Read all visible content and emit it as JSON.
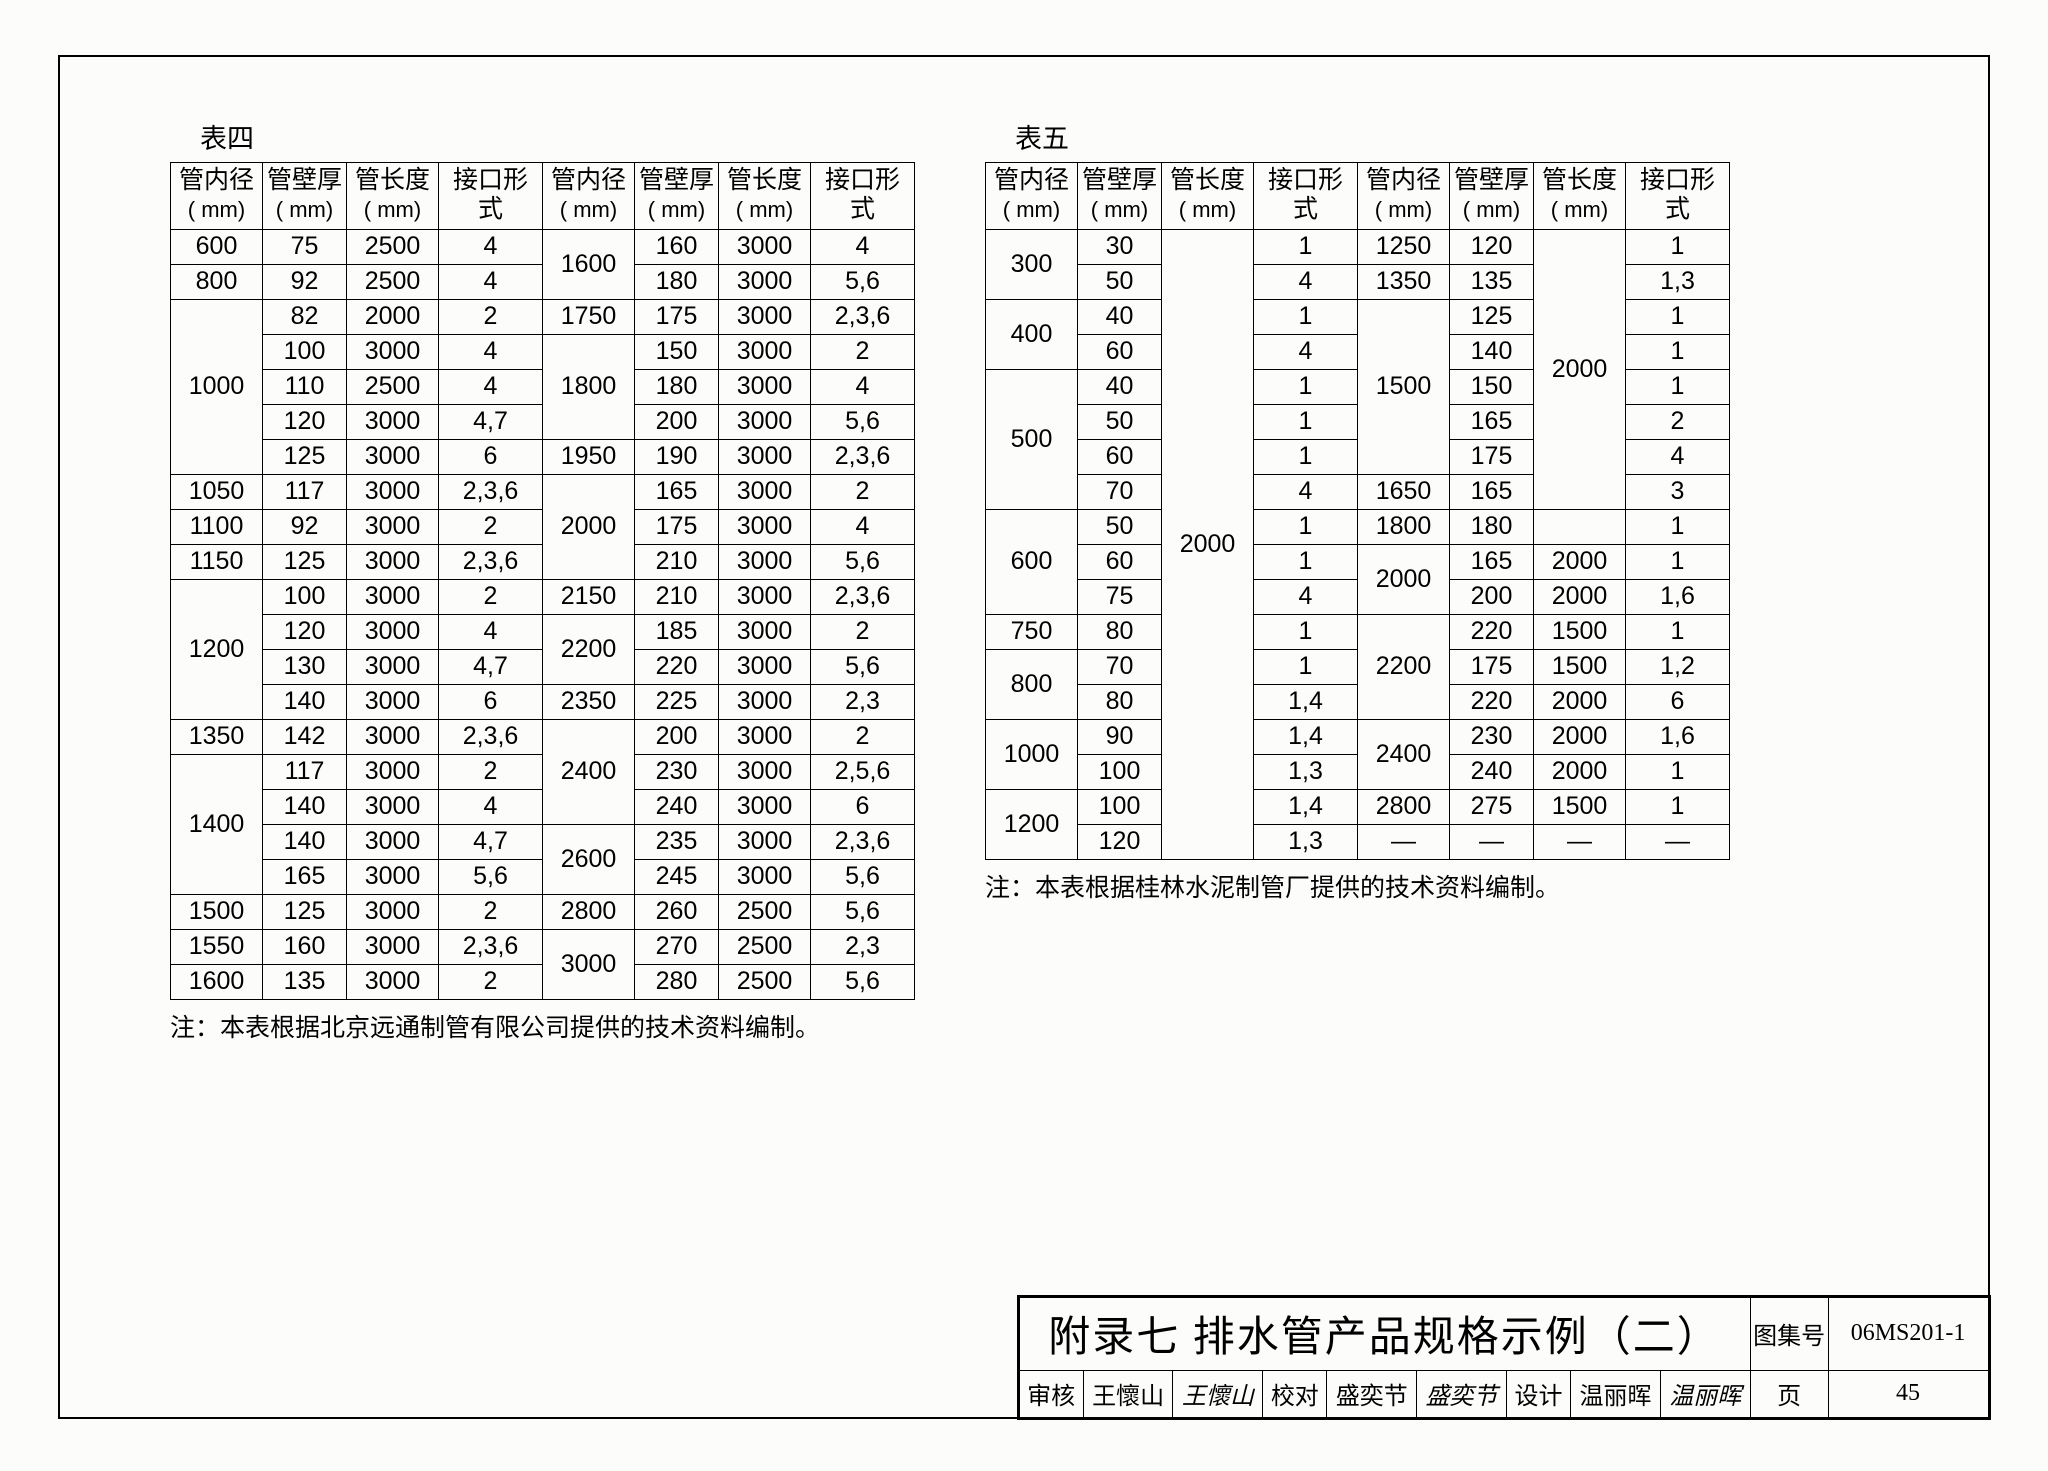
{
  "global": {
    "border_color": "#000000",
    "background_color": "#fcfcfb",
    "text_color": "#000000"
  },
  "table4": {
    "caption": "表四",
    "headers": [
      {
        "l1": "管内径",
        "l2": "( mm)"
      },
      {
        "l1": "管壁厚",
        "l2": "( mm)"
      },
      {
        "l1": "管长度",
        "l2": "( mm)"
      },
      {
        "l1": "接口形式",
        "l2": ""
      },
      {
        "l1": "管内径",
        "l2": "( mm)"
      },
      {
        "l1": "管壁厚",
        "l2": "( mm)"
      },
      {
        "l1": "管长度",
        "l2": "( mm)"
      },
      {
        "l1": "接口形式",
        "l2": ""
      }
    ],
    "body": [
      [
        {
          "t": "600"
        },
        {
          "t": "75"
        },
        {
          "t": "2500"
        },
        {
          "t": "4"
        },
        {
          "t": "1600",
          "rs": 2
        },
        {
          "t": "160"
        },
        {
          "t": "3000"
        },
        {
          "t": "4"
        }
      ],
      [
        {
          "t": "800"
        },
        {
          "t": "92"
        },
        {
          "t": "2500"
        },
        {
          "t": "4"
        },
        {
          "t": "180"
        },
        {
          "t": "3000"
        },
        {
          "t": "5,6"
        }
      ],
      [
        {
          "t": "1000",
          "rs": 5
        },
        {
          "t": "82"
        },
        {
          "t": "2000"
        },
        {
          "t": "2"
        },
        {
          "t": "1750"
        },
        {
          "t": "175"
        },
        {
          "t": "3000"
        },
        {
          "t": "2,3,6"
        }
      ],
      [
        {
          "t": "100"
        },
        {
          "t": "3000"
        },
        {
          "t": "4"
        },
        {
          "t": "1800",
          "rs": 3
        },
        {
          "t": "150"
        },
        {
          "t": "3000"
        },
        {
          "t": "2"
        }
      ],
      [
        {
          "t": "110"
        },
        {
          "t": "2500"
        },
        {
          "t": "4"
        },
        {
          "t": "180"
        },
        {
          "t": "3000"
        },
        {
          "t": "4"
        }
      ],
      [
        {
          "t": "120"
        },
        {
          "t": "3000"
        },
        {
          "t": "4,7"
        },
        {
          "t": "200"
        },
        {
          "t": "3000"
        },
        {
          "t": "5,6"
        }
      ],
      [
        {
          "t": "125"
        },
        {
          "t": "3000"
        },
        {
          "t": "6"
        },
        {
          "t": "1950"
        },
        {
          "t": "190"
        },
        {
          "t": "3000"
        },
        {
          "t": "2,3,6"
        }
      ],
      [
        {
          "t": "1050"
        },
        {
          "t": "117"
        },
        {
          "t": "3000"
        },
        {
          "t": "2,3,6"
        },
        {
          "t": "2000",
          "rs": 3
        },
        {
          "t": "165"
        },
        {
          "t": "3000"
        },
        {
          "t": "2"
        }
      ],
      [
        {
          "t": "1100"
        },
        {
          "t": "92"
        },
        {
          "t": "3000"
        },
        {
          "t": "2"
        },
        {
          "t": "175"
        },
        {
          "t": "3000"
        },
        {
          "t": "4"
        }
      ],
      [
        {
          "t": "1150"
        },
        {
          "t": "125"
        },
        {
          "t": "3000"
        },
        {
          "t": "2,3,6"
        },
        {
          "t": "210"
        },
        {
          "t": "3000"
        },
        {
          "t": "5,6"
        }
      ],
      [
        {
          "t": "1200",
          "rs": 4
        },
        {
          "t": "100"
        },
        {
          "t": "3000"
        },
        {
          "t": "2"
        },
        {
          "t": "2150"
        },
        {
          "t": "210"
        },
        {
          "t": "3000"
        },
        {
          "t": "2,3,6"
        }
      ],
      [
        {
          "t": "120"
        },
        {
          "t": "3000"
        },
        {
          "t": "4"
        },
        {
          "t": "2200",
          "rs": 2
        },
        {
          "t": "185"
        },
        {
          "t": "3000"
        },
        {
          "t": "2"
        }
      ],
      [
        {
          "t": "130"
        },
        {
          "t": "3000"
        },
        {
          "t": "4,7"
        },
        {
          "t": "220"
        },
        {
          "t": "3000"
        },
        {
          "t": "5,6"
        }
      ],
      [
        {
          "t": "140"
        },
        {
          "t": "3000"
        },
        {
          "t": "6"
        },
        {
          "t": "2350"
        },
        {
          "t": "225"
        },
        {
          "t": "3000"
        },
        {
          "t": "2,3"
        }
      ],
      [
        {
          "t": "1350"
        },
        {
          "t": "142"
        },
        {
          "t": "3000"
        },
        {
          "t": "2,3,6"
        },
        {
          "t": "2400",
          "rs": 3
        },
        {
          "t": "200"
        },
        {
          "t": "3000"
        },
        {
          "t": "2"
        }
      ],
      [
        {
          "t": "1400",
          "rs": 4
        },
        {
          "t": "117"
        },
        {
          "t": "3000"
        },
        {
          "t": "2"
        },
        {
          "t": "230"
        },
        {
          "t": "3000"
        },
        {
          "t": "2,5,6"
        }
      ],
      [
        {
          "t": "140"
        },
        {
          "t": "3000"
        },
        {
          "t": "4"
        },
        {
          "t": "240"
        },
        {
          "t": "3000"
        },
        {
          "t": "6"
        }
      ],
      [
        {
          "t": "140"
        },
        {
          "t": "3000"
        },
        {
          "t": "4,7"
        },
        {
          "t": "2600",
          "rs": 2
        },
        {
          "t": "235"
        },
        {
          "t": "3000"
        },
        {
          "t": "2,3,6"
        }
      ],
      [
        {
          "t": "165"
        },
        {
          "t": "3000"
        },
        {
          "t": "5,6"
        },
        {
          "t": "245"
        },
        {
          "t": "3000"
        },
        {
          "t": "5,6"
        }
      ],
      [
        {
          "t": "1500"
        },
        {
          "t": "125"
        },
        {
          "t": "3000"
        },
        {
          "t": "2"
        },
        {
          "t": "2800"
        },
        {
          "t": "260"
        },
        {
          "t": "2500"
        },
        {
          "t": "5,6"
        }
      ],
      [
        {
          "t": "1550"
        },
        {
          "t": "160"
        },
        {
          "t": "3000"
        },
        {
          "t": "2,3,6"
        },
        {
          "t": "3000",
          "rs": 2
        },
        {
          "t": "270"
        },
        {
          "t": "2500"
        },
        {
          "t": "2,3"
        }
      ],
      [
        {
          "t": "1600"
        },
        {
          "t": "135"
        },
        {
          "t": "3000"
        },
        {
          "t": "2"
        },
        {
          "t": "280"
        },
        {
          "t": "2500"
        },
        {
          "t": "5,6"
        }
      ]
    ],
    "note": "注：本表根据北京远通制管有限公司提供的技术资料编制。"
  },
  "table5": {
    "caption": "表五",
    "headers": [
      {
        "l1": "管内径",
        "l2": "( mm)"
      },
      {
        "l1": "管壁厚",
        "l2": "( mm)"
      },
      {
        "l1": "管长度",
        "l2": "( mm)"
      },
      {
        "l1": "接口形式",
        "l2": ""
      },
      {
        "l1": "管内径",
        "l2": "( mm)"
      },
      {
        "l1": "管壁厚",
        "l2": "( mm)"
      },
      {
        "l1": "管长度",
        "l2": "( mm)"
      },
      {
        "l1": "接口形式",
        "l2": ""
      }
    ],
    "body": [
      [
        {
          "t": "300",
          "rs": 2
        },
        {
          "t": "30"
        },
        {
          "t": "2000",
          "rs": 19
        },
        {
          "t": "1"
        },
        {
          "t": "1250"
        },
        {
          "t": "120"
        },
        {
          "t": "2000",
          "rs": 8
        },
        {
          "t": "1"
        }
      ],
      [
        {
          "t": "50"
        },
        {
          "t": "4"
        },
        {
          "t": "1350"
        },
        {
          "t": "135"
        },
        {
          "t": "1,3"
        }
      ],
      [
        {
          "t": "400",
          "rs": 2
        },
        {
          "t": "40"
        },
        {
          "t": "1"
        },
        {
          "t": "1500",
          "rs": 5
        },
        {
          "t": "125"
        },
        {
          "t": "1"
        }
      ],
      [
        {
          "t": "60"
        },
        {
          "t": "4"
        },
        {
          "t": "140"
        },
        {
          "t": "1"
        }
      ],
      [
        {
          "t": "500",
          "rs": 4
        },
        {
          "t": "40"
        },
        {
          "t": "1"
        },
        {
          "t": "150"
        },
        {
          "t": "1"
        }
      ],
      [
        {
          "t": "50"
        },
        {
          "t": "1"
        },
        {
          "t": "165"
        },
        {
          "t": "2"
        }
      ],
      [
        {
          "t": "60"
        },
        {
          "t": "1"
        },
        {
          "t": "175"
        },
        {
          "t": "4"
        }
      ],
      [
        {
          "t": "70"
        },
        {
          "t": "4"
        },
        {
          "t": "1650"
        },
        {
          "t": "165"
        },
        {
          "t": "3"
        }
      ],
      [
        {
          "t": "600",
          "rs": 3
        },
        {
          "t": "50"
        },
        {
          "t": "1"
        },
        {
          "t": "1800"
        },
        {
          "t": "180"
        },
        {
          "t": ""
        },
        {
          "t": "1"
        }
      ],
      [
        {
          "t": "60"
        },
        {
          "t": "1"
        },
        {
          "t": "2000",
          "rs": 2
        },
        {
          "t": "165"
        },
        {
          "t": "2000"
        },
        {
          "t": "1"
        }
      ],
      [
        {
          "t": "75"
        },
        {
          "t": "4"
        },
        {
          "t": "200"
        },
        {
          "t": "2000"
        },
        {
          "t": "1,6"
        }
      ],
      [
        {
          "t": "750"
        },
        {
          "t": "80"
        },
        {
          "t": "1"
        },
        {
          "t": "2200",
          "rs": 3
        },
        {
          "t": "220"
        },
        {
          "t": "1500"
        },
        {
          "t": "1"
        }
      ],
      [
        {
          "t": "800",
          "rs": 2
        },
        {
          "t": "70"
        },
        {
          "t": "1"
        },
        {
          "t": "175"
        },
        {
          "t": "1500"
        },
        {
          "t": "1,2"
        }
      ],
      [
        {
          "t": "80"
        },
        {
          "t": "1,4"
        },
        {
          "t": "220"
        },
        {
          "t": "2000"
        },
        {
          "t": "6"
        }
      ],
      [
        {
          "t": "1000",
          "rs": 2
        },
        {
          "t": "90"
        },
        {
          "t": "1,4"
        },
        {
          "t": "2400",
          "rs": 2
        },
        {
          "t": "230"
        },
        {
          "t": "2000"
        },
        {
          "t": "1,6"
        }
      ],
      [
        {
          "t": "100"
        },
        {
          "t": "1,3"
        },
        {
          "t": "240"
        },
        {
          "t": "2000"
        },
        {
          "t": "1"
        }
      ],
      [
        {
          "t": "1200",
          "rs": 2
        },
        {
          "t": "100"
        },
        {
          "t": "1,4"
        },
        {
          "t": "2800"
        },
        {
          "t": "275"
        },
        {
          "t": "1500"
        },
        {
          "t": "1"
        }
      ],
      [
        {
          "t": "120"
        },
        {
          "t": "1,3"
        },
        {
          "t": "—"
        },
        {
          "t": "—"
        },
        {
          "t": "—"
        },
        {
          "t": "—"
        }
      ]
    ],
    "note": "注：本表根据桂林水泥制管厂提供的技术资料编制。"
  },
  "titleblock": {
    "title": "附录七  排水管产品规格示例（二）",
    "labels": {
      "review": "审核",
      "reviewer": "王懷山",
      "reviewer_sig": "王懷山",
      "check": "校对",
      "checker": "盛奕节",
      "checker_sig": "盛奕节",
      "design": "设计",
      "designer": "温丽晖",
      "designer_sig": "温丽晖",
      "album_no": "图集号",
      "album_val": "06MS201-1",
      "page": "页",
      "page_val": "45"
    }
  }
}
